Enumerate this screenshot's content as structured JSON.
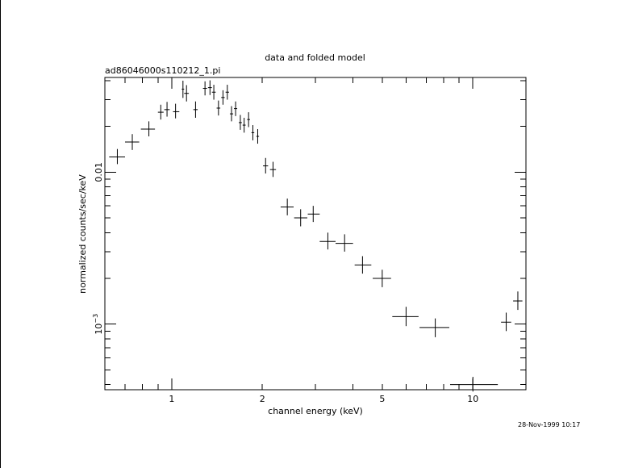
{
  "chart_data": {
    "type": "scatter",
    "title": "data and folded model",
    "subtitle": "ad86046000s110212_1.pi",
    "xlabel": "channel energy (keV)",
    "ylabel": "normalized counts/sec/keV",
    "timestamp": "28-Nov-1999 10:17",
    "x_scale": "log",
    "y_scale": "log",
    "xlim": [
      0.6,
      15.0
    ],
    "ylim": [
      0.00037,
      0.042
    ],
    "x_ticks": [
      {
        "value": 1,
        "label": "1"
      },
      {
        "value": 2,
        "label": "2"
      },
      {
        "value": 5,
        "label": "5"
      },
      {
        "value": 10,
        "label": "10"
      }
    ],
    "y_ticks": [
      {
        "value": 0.01,
        "label": "0.01"
      },
      {
        "value": 0.001,
        "label": "10",
        "exponent": "−3"
      }
    ],
    "series": [
      {
        "points": [
          {
            "x": 0.66,
            "y": 0.0126,
            "xerr": [
              0.62,
              0.7
            ],
            "yerr": [
              0.0113,
              0.0142
            ]
          },
          {
            "x": 0.74,
            "y": 0.0158,
            "xerr": [
              0.7,
              0.78
            ],
            "yerr": [
              0.014,
              0.0178
            ]
          },
          {
            "x": 0.84,
            "y": 0.0192,
            "xerr": [
              0.79,
              0.88
            ],
            "yerr": [
              0.0172,
              0.0216
            ]
          },
          {
            "x": 0.92,
            "y": 0.0248,
            "xerr": [
              0.9,
              0.94
            ],
            "yerr": [
              0.0222,
              0.0278
            ]
          },
          {
            "x": 0.965,
            "y": 0.0258,
            "xerr": [
              0.945,
              0.985
            ],
            "yerr": [
              0.0232,
              0.029
            ]
          },
          {
            "x": 1.03,
            "y": 0.025,
            "xerr": [
              1.01,
              1.06
            ],
            "yerr": [
              0.0226,
              0.0282
            ]
          },
          {
            "x": 1.09,
            "y": 0.0352,
            "xerr": [
              1.08,
              1.1
            ],
            "yerr": [
              0.0308,
              0.04
            ]
          },
          {
            "x": 1.12,
            "y": 0.033,
            "xerr": [
              1.1,
              1.14
            ],
            "yerr": [
              0.0292,
              0.0374
            ]
          },
          {
            "x": 1.2,
            "y": 0.0258,
            "xerr": [
              1.18,
              1.22
            ],
            "yerr": [
              0.0228,
              0.0292
            ]
          },
          {
            "x": 1.29,
            "y": 0.0356,
            "xerr": [
              1.27,
              1.31
            ],
            "yerr": [
              0.032,
              0.0396
            ]
          },
          {
            "x": 1.34,
            "y": 0.036,
            "xerr": [
              1.32,
              1.36
            ],
            "yerr": [
              0.0322,
              0.0402
            ]
          },
          {
            "x": 1.38,
            "y": 0.0336,
            "xerr": [
              1.36,
              1.4
            ],
            "yerr": [
              0.03,
              0.0376
            ]
          },
          {
            "x": 1.43,
            "y": 0.0264,
            "xerr": [
              1.41,
              1.45
            ],
            "yerr": [
              0.0236,
              0.0296
            ]
          },
          {
            "x": 1.48,
            "y": 0.031,
            "xerr": [
              1.46,
              1.5
            ],
            "yerr": [
              0.0278,
              0.0346
            ]
          },
          {
            "x": 1.53,
            "y": 0.0336,
            "xerr": [
              1.51,
              1.55
            ],
            "yerr": [
              0.03,
              0.0376
            ]
          },
          {
            "x": 1.58,
            "y": 0.0242,
            "xerr": [
              1.56,
              1.6
            ],
            "yerr": [
              0.0216,
              0.0272
            ]
          },
          {
            "x": 1.63,
            "y": 0.0262,
            "xerr": [
              1.61,
              1.65
            ],
            "yerr": [
              0.0234,
              0.0292
            ]
          },
          {
            "x": 1.69,
            "y": 0.0212,
            "xerr": [
              1.67,
              1.71
            ],
            "yerr": [
              0.019,
              0.0238
            ]
          },
          {
            "x": 1.74,
            "y": 0.0204,
            "xerr": [
              1.72,
              1.76
            ],
            "yerr": [
              0.0182,
              0.0228
            ]
          },
          {
            "x": 1.8,
            "y": 0.0222,
            "xerr": [
              1.78,
              1.82
            ],
            "yerr": [
              0.0198,
              0.0248
            ]
          },
          {
            "x": 1.86,
            "y": 0.0182,
            "xerr": [
              1.84,
              1.88
            ],
            "yerr": [
              0.0162,
              0.0204
            ]
          },
          {
            "x": 1.93,
            "y": 0.0172,
            "xerr": [
              1.91,
              1.95
            ],
            "yerr": [
              0.0154,
              0.0192
            ]
          },
          {
            "x": 2.05,
            "y": 0.011,
            "xerr": [
              2.01,
              2.09
            ],
            "yerr": [
              0.0098,
              0.0124
            ]
          },
          {
            "x": 2.17,
            "y": 0.0104,
            "xerr": [
              2.12,
              2.22
            ],
            "yerr": [
              0.0093,
              0.0117
            ]
          },
          {
            "x": 2.42,
            "y": 0.0059,
            "xerr": [
              2.3,
              2.54
            ],
            "yerr": [
              0.0052,
              0.0067
            ]
          },
          {
            "x": 2.68,
            "y": 0.005,
            "xerr": [
              2.55,
              2.82
            ],
            "yerr": [
              0.0044,
              0.0057
            ]
          },
          {
            "x": 2.95,
            "y": 0.0053,
            "xerr": [
              2.83,
              3.1
            ],
            "yerr": [
              0.0047,
              0.006
            ]
          },
          {
            "x": 3.3,
            "y": 0.0035,
            "xerr": [
              3.1,
              3.5
            ],
            "yerr": [
              0.0031,
              0.004
            ]
          },
          {
            "x": 3.75,
            "y": 0.0034,
            "xerr": [
              3.5,
              4.0
            ],
            "yerr": [
              0.003,
              0.0039
            ]
          },
          {
            "x": 4.3,
            "y": 0.00245,
            "xerr": [
              4.05,
              4.6
            ],
            "yerr": [
              0.00215,
              0.0028
            ]
          },
          {
            "x": 5.0,
            "y": 0.002,
            "xerr": [
              4.65,
              5.35
            ],
            "yerr": [
              0.00175,
              0.00228
            ]
          },
          {
            "x": 6.0,
            "y": 0.00112,
            "xerr": [
              5.4,
              6.6
            ],
            "yerr": [
              0.00097,
              0.0013
            ]
          },
          {
            "x": 7.5,
            "y": 0.00095,
            "xerr": [
              6.65,
              8.35
            ],
            "yerr": [
              0.00082,
              0.00109
            ]
          },
          {
            "x": 10.0,
            "y": 0.0004,
            "xerr": [
              8.4,
              12.1
            ],
            "yerr": [
              0.00036,
              0.00045
            ]
          },
          {
            "x": 12.9,
            "y": 0.00103,
            "xerr": [
              12.4,
              13.4
            ],
            "yerr": [
              0.0009,
              0.00119
            ]
          },
          {
            "x": 14.1,
            "y": 0.00142,
            "xerr": [
              13.6,
              14.6
            ],
            "yerr": [
              0.00124,
              0.00164
            ]
          }
        ]
      }
    ]
  }
}
